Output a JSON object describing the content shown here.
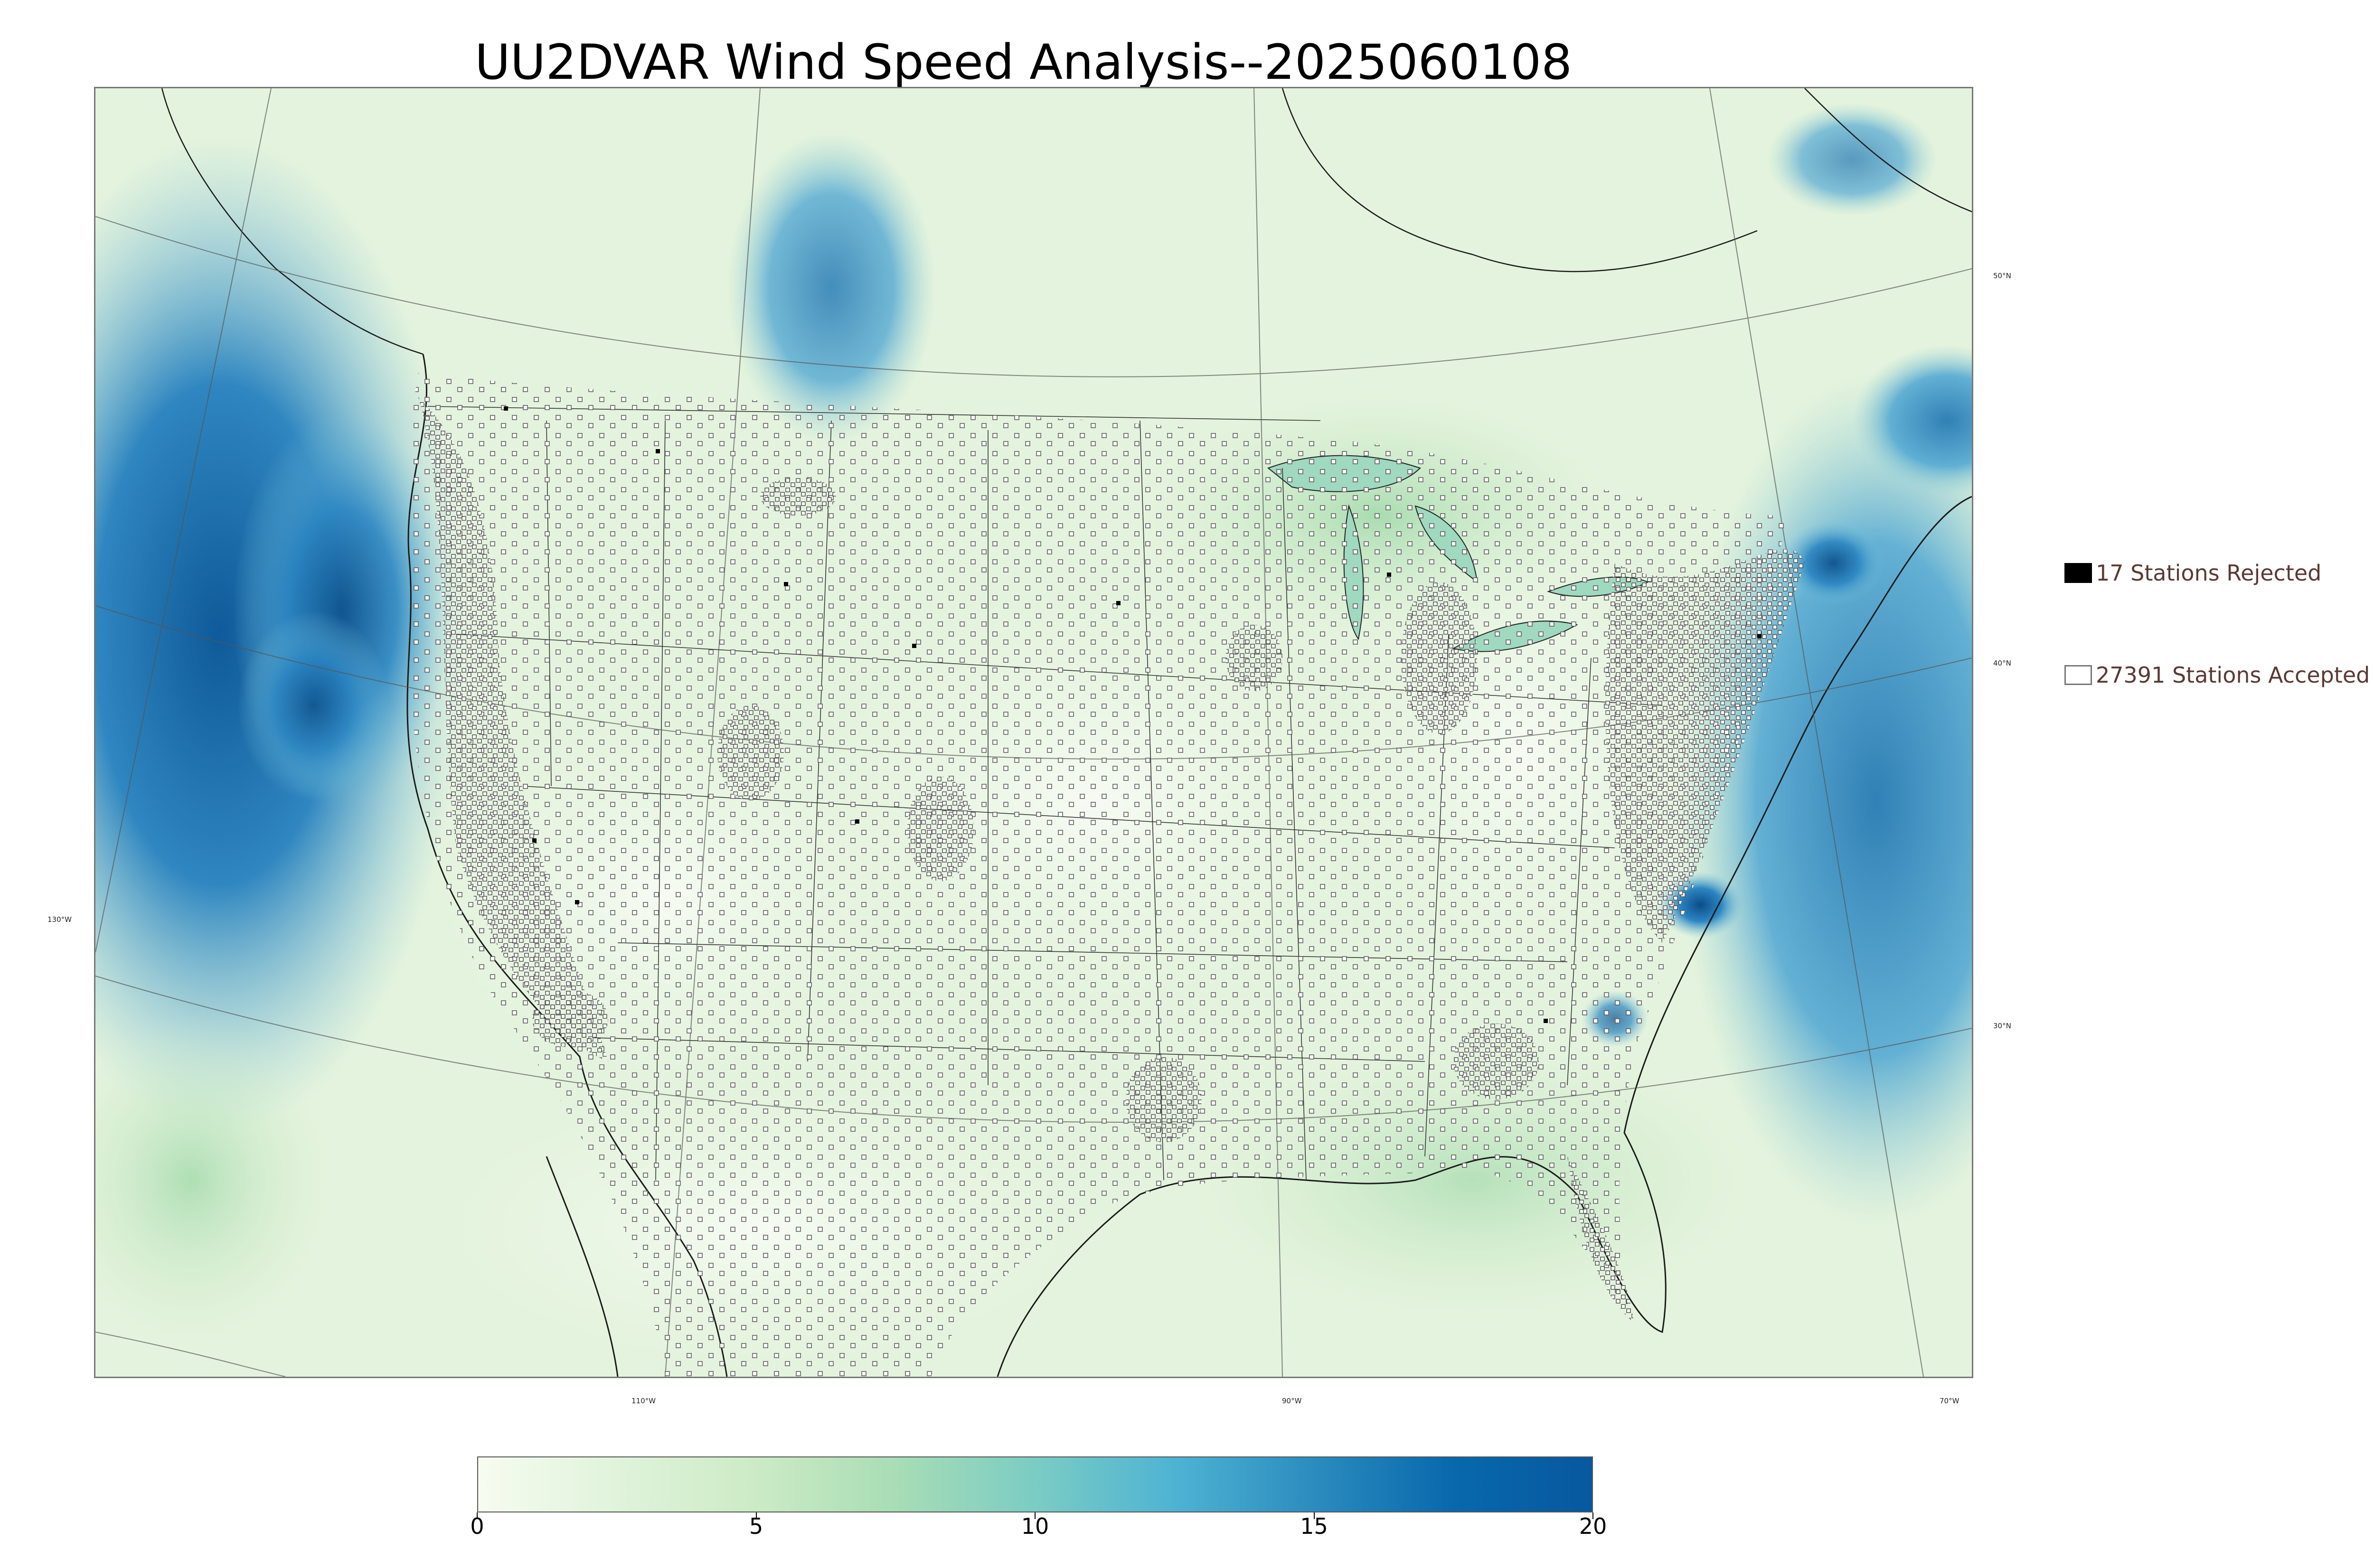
{
  "title": "UU2DVAR Wind Speed Analysis--2025060108",
  "map": {
    "lat_labels": [
      "50°N",
      "40°N",
      "30°N"
    ],
    "lon_labels": [
      "130°W",
      "110°W",
      "90°W",
      "70°W"
    ],
    "colors": {
      "ocean_strong": "#1b6aa8",
      "ocean_mid": "#4aa0d0",
      "land_light": "#eef8e8",
      "land_green": "#bfe4b8",
      "coast_line": "#1a1a1a",
      "grid_line": "#555555"
    }
  },
  "legend": {
    "rejected": {
      "label": "17 Stations Rejected",
      "color": "#000000"
    },
    "accepted": {
      "label": "27391 Stations Accepted",
      "color": "#ffffff"
    }
  },
  "colorbar": {
    "min": 0,
    "max": 20,
    "ticks": [
      "0",
      "5",
      "10",
      "15",
      "20"
    ],
    "colors": [
      "#f7fcf0",
      "#e0f3db",
      "#ccebc5",
      "#a8ddb5",
      "#7bccc4",
      "#4eb3d3",
      "#2b8cbe",
      "#0868ac",
      "#08589e"
    ]
  }
}
